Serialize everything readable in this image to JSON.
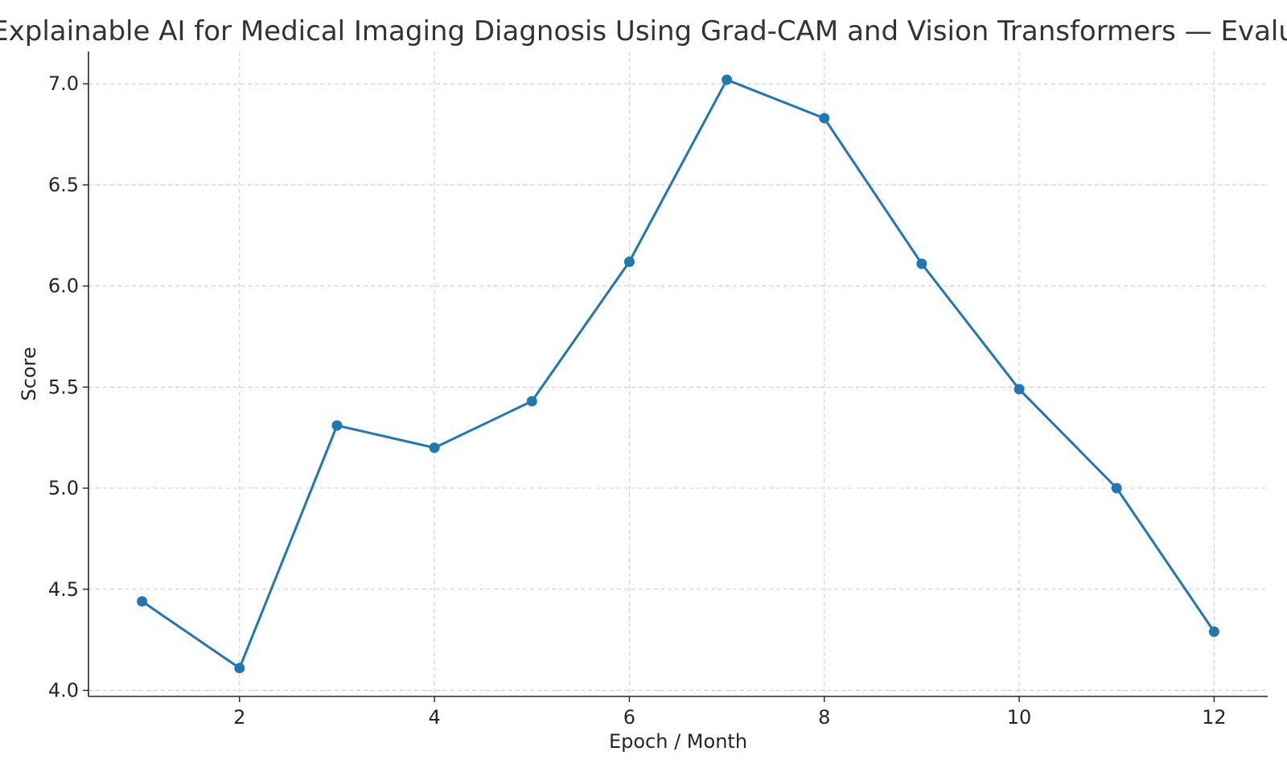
{
  "chart_data": {
    "type": "line",
    "title": "Explainable AI for Medical Imaging Diagnosis Using Grad-CAM and Vision Transformers — Evaluation",
    "xlabel": "Epoch / Month",
    "ylabel": "Score",
    "x": [
      1,
      2,
      3,
      4,
      5,
      6,
      7,
      8,
      9,
      10,
      11,
      12
    ],
    "series": [
      {
        "values": [
          4.44,
          4.11,
          5.31,
          5.2,
          5.43,
          6.12,
          7.02,
          6.83,
          6.11,
          5.49,
          5.0,
          4.29
        ],
        "color": "#1f77b4",
        "marker": "circle"
      }
    ],
    "xlim": [
      0.45,
      12.55
    ],
    "ylim": [
      3.97,
      7.16
    ],
    "x_ticks": [
      2,
      4,
      6,
      8,
      10,
      12
    ],
    "y_ticks": [
      4.0,
      4.5,
      5.0,
      5.5,
      6.0,
      6.5,
      7.0
    ],
    "x_tick_labels": [
      "2",
      "4",
      "6",
      "8",
      "10",
      "12"
    ],
    "y_tick_labels": [
      "4.0",
      "4.5",
      "5.0",
      "5.5",
      "6.0",
      "6.5",
      "7.0"
    ],
    "grid": true,
    "grid_style": "dashed"
  }
}
